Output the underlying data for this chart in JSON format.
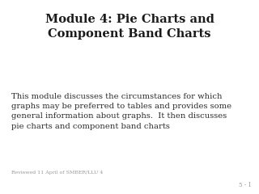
{
  "title": "Module 4: Pie Charts and\nComponent Band Charts",
  "body_text": "This module discusses the circumstances for which\ngraphs may be preferred to tables and provides some\ngeneral information about graphs.  It then discusses\npie charts and component band charts",
  "footer_text": "Reviewed 11 April of SMBER/LLU 4",
  "slide_number": "5 - 1",
  "bg_color": "#ffffff",
  "title_color": "#1a1a1a",
  "body_color": "#2a2a2a",
  "footer_color": "#999999",
  "title_fontsize": 10.5,
  "body_fontsize": 7.2,
  "footer_fontsize": 4.5,
  "slide_num_fontsize": 5.0
}
